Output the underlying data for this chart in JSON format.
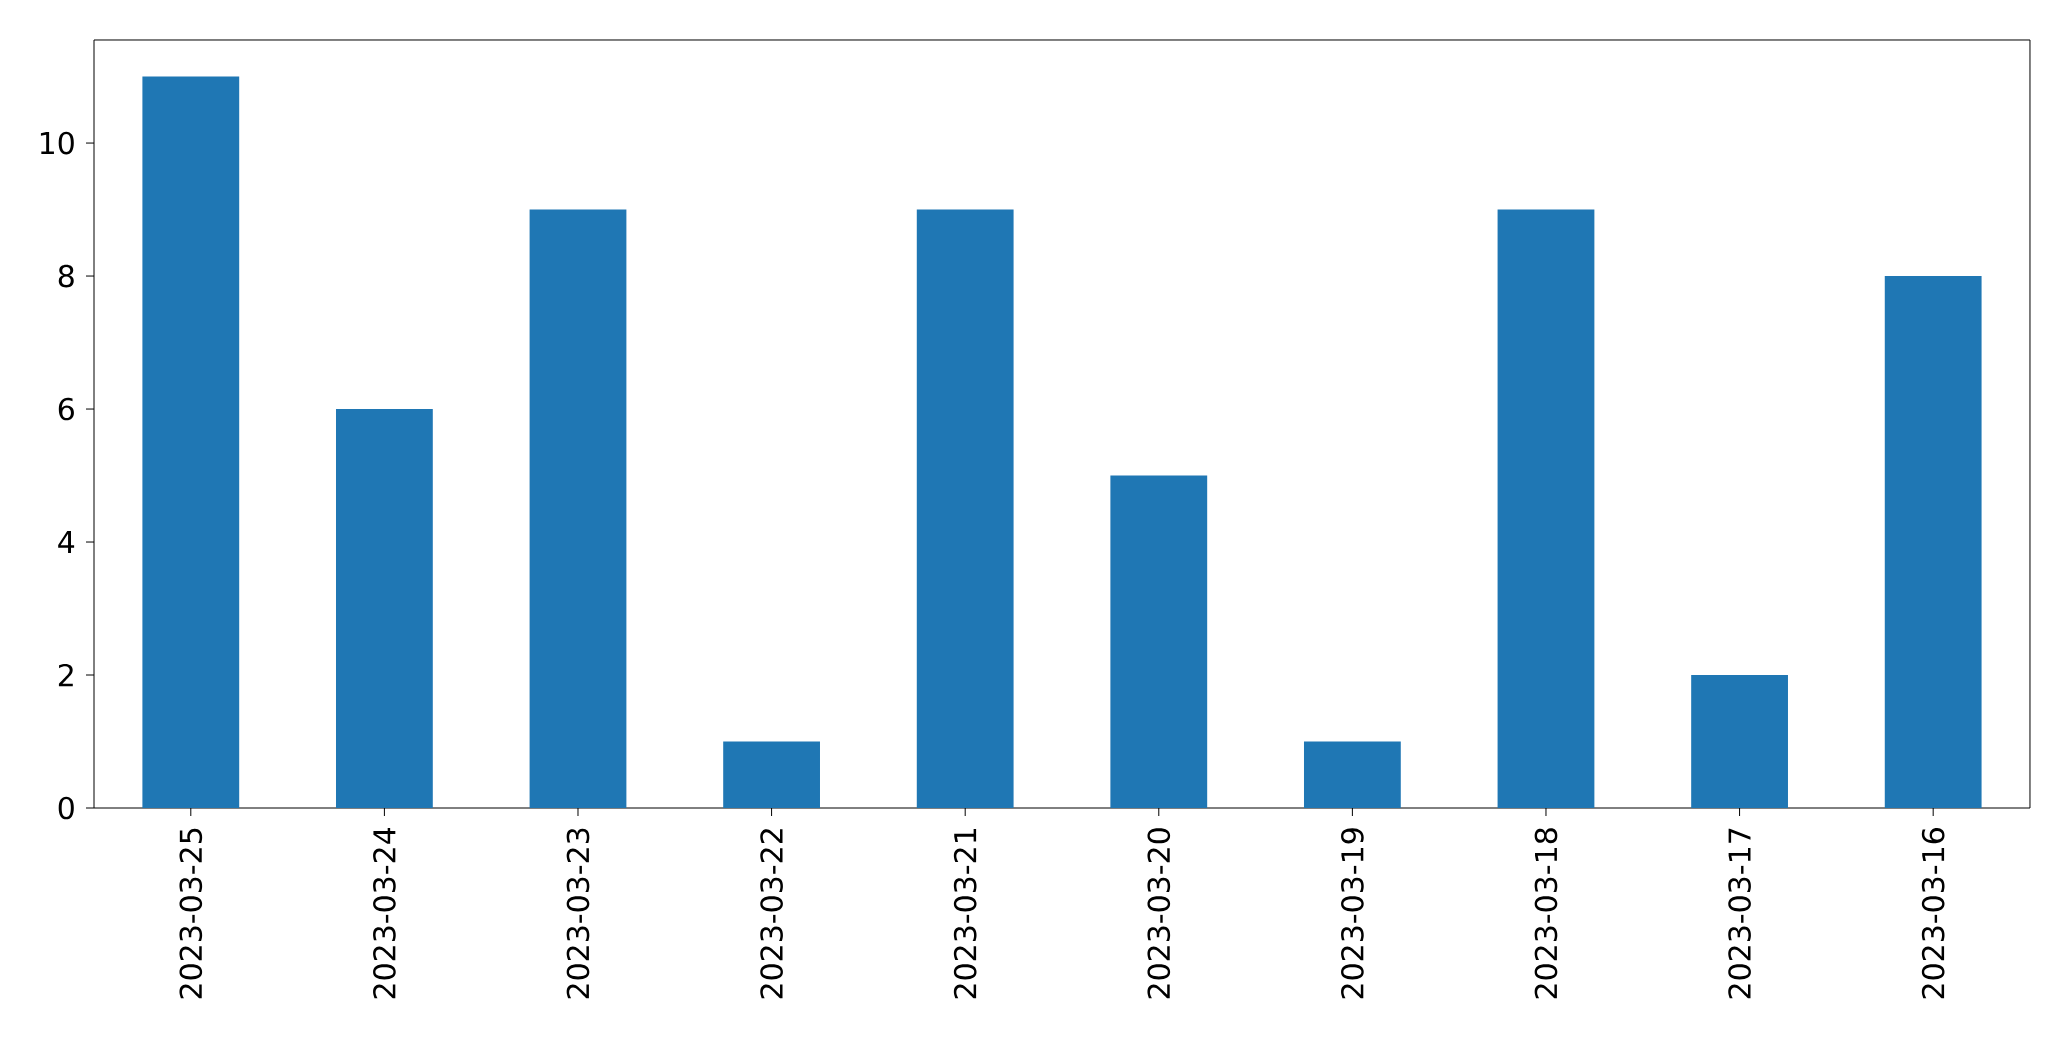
{
  "chart_data": {
    "type": "bar",
    "categories": [
      "2023-03-25",
      "2023-03-24",
      "2023-03-23",
      "2023-03-22",
      "2023-03-21",
      "2023-03-20",
      "2023-03-19",
      "2023-03-18",
      "2023-03-17",
      "2023-03-16"
    ],
    "values": [
      11,
      6,
      9,
      1,
      9,
      5,
      1,
      9,
      2,
      8
    ],
    "color": "#1f77b4",
    "ylim": [
      0,
      11.55
    ],
    "yticks": [
      0,
      2,
      4,
      6,
      8,
      10
    ]
  }
}
